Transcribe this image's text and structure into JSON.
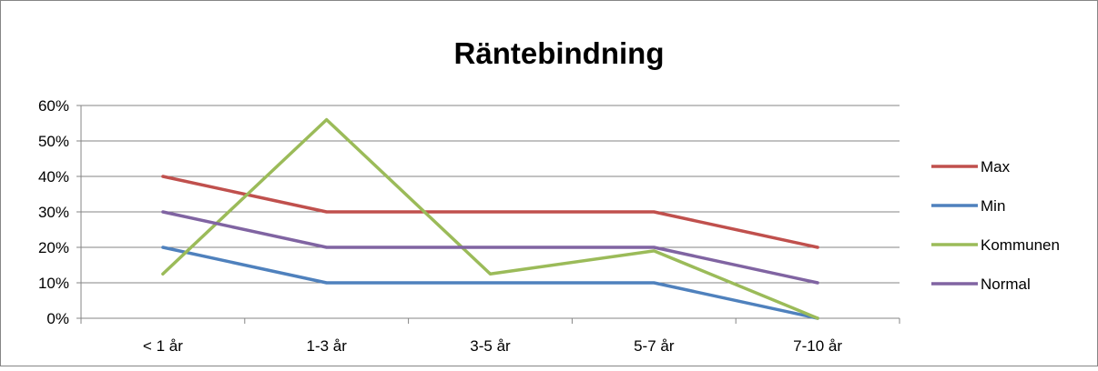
{
  "chart_data": {
    "type": "line",
    "title": "Räntebindning",
    "xlabel": "",
    "ylabel": "",
    "categories": [
      "< 1 år",
      "1-3 år",
      "3-5 år",
      "5-7 år",
      "7-10 år"
    ],
    "ylim": [
      0,
      0.6
    ],
    "y_ticks": [
      0,
      0.1,
      0.2,
      0.3,
      0.4,
      0.5,
      0.6
    ],
    "y_tick_labels": [
      "0%",
      "10%",
      "20%",
      "30%",
      "40%",
      "50%",
      "60%"
    ],
    "grid": true,
    "legend_position": "right",
    "series": [
      {
        "name": "Max",
        "color": "#c0504d",
        "values": [
          0.4,
          0.3,
          0.3,
          0.3,
          0.2
        ]
      },
      {
        "name": "Min",
        "color": "#4f81bd",
        "values": [
          0.2,
          0.1,
          0.1,
          0.1,
          0.0
        ]
      },
      {
        "name": "Kommunen",
        "color": "#9bbb59",
        "values": [
          0.125,
          0.56,
          0.125,
          0.19,
          0.0
        ]
      },
      {
        "name": "Normal",
        "color": "#8064a2",
        "values": [
          0.3,
          0.2,
          0.2,
          0.2,
          0.1
        ]
      }
    ]
  }
}
